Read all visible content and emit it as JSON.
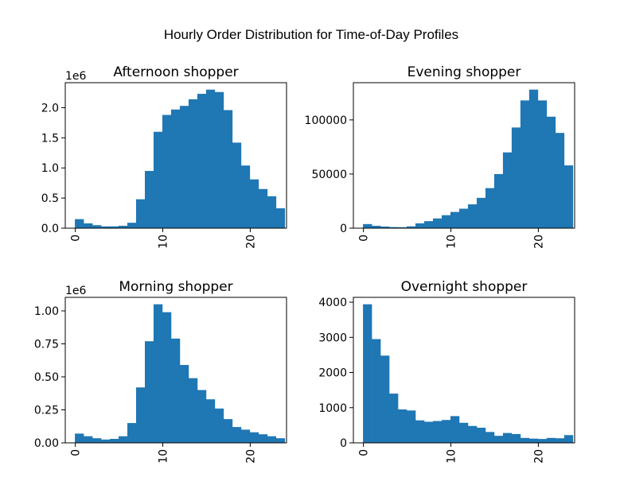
{
  "figure_title": "Hourly Order Distribution for Time-of-Day Profiles",
  "colors": {
    "bar": "#1f77b4"
  },
  "chart_data": [
    {
      "type": "bar",
      "title": "Afternoon shopper",
      "offset_label": "1e6",
      "x": [
        0,
        1,
        2,
        3,
        4,
        5,
        6,
        7,
        8,
        9,
        10,
        11,
        12,
        13,
        14,
        15,
        16,
        17,
        18,
        19,
        20,
        21,
        22,
        23
      ],
      "values": [
        150000,
        80000,
        50000,
        30000,
        30000,
        40000,
        90000,
        480000,
        950000,
        1600000,
        1880000,
        1970000,
        2030000,
        2140000,
        2230000,
        2300000,
        2260000,
        1960000,
        1420000,
        1040000,
        810000,
        650000,
        530000,
        330000
      ],
      "xlim": [
        -1.15,
        24.15
      ],
      "ylim": [
        0,
        2415000
      ],
      "xticks": [
        0,
        10,
        20
      ],
      "xtick_labels": [
        "0",
        "10",
        "20"
      ],
      "yticks": [
        0,
        500000,
        1000000,
        1500000,
        2000000
      ],
      "ytick_labels": [
        "0.0",
        "0.5",
        "1.0",
        "1.5",
        "2.0"
      ]
    },
    {
      "type": "bar",
      "title": "Evening shopper",
      "offset_label": "",
      "x": [
        0,
        1,
        2,
        3,
        4,
        5,
        6,
        7,
        8,
        9,
        10,
        11,
        12,
        13,
        14,
        15,
        16,
        17,
        18,
        19,
        20,
        21,
        22,
        23
      ],
      "values": [
        3800,
        2200,
        1500,
        1000,
        900,
        1700,
        4500,
        6500,
        9000,
        12000,
        15000,
        18000,
        22000,
        28000,
        37000,
        50000,
        70000,
        93000,
        118000,
        128000,
        118000,
        103000,
        88000,
        58000
      ],
      "xlim": [
        -1.15,
        24.15
      ],
      "ylim": [
        0,
        134400
      ],
      "xticks": [
        0,
        10,
        20
      ],
      "xtick_labels": [
        "0",
        "10",
        "20"
      ],
      "yticks": [
        0,
        50000,
        100000
      ],
      "ytick_labels": [
        "0",
        "50000",
        "100000"
      ]
    },
    {
      "type": "bar",
      "title": "Morning shopper",
      "offset_label": "1e6",
      "x": [
        0,
        1,
        2,
        3,
        4,
        5,
        6,
        7,
        8,
        9,
        10,
        11,
        12,
        13,
        14,
        15,
        16,
        17,
        18,
        19,
        20,
        21,
        22,
        23
      ],
      "values": [
        70000,
        50000,
        35000,
        25000,
        30000,
        50000,
        150000,
        420000,
        770000,
        1050000,
        990000,
        790000,
        590000,
        490000,
        400000,
        330000,
        260000,
        180000,
        120000,
        100000,
        80000,
        65000,
        50000,
        35000
      ],
      "xlim": [
        -1.15,
        24.15
      ],
      "ylim": [
        0,
        1102500
      ],
      "xticks": [
        0,
        10,
        20
      ],
      "xtick_labels": [
        "0",
        "10",
        "20"
      ],
      "yticks": [
        0,
        250000,
        500000,
        750000,
        1000000
      ],
      "ytick_labels": [
        "0.00",
        "0.25",
        "0.50",
        "0.75",
        "1.00"
      ]
    },
    {
      "type": "bar",
      "title": "Overnight shopper",
      "offset_label": "",
      "x": [
        0,
        1,
        2,
        3,
        4,
        5,
        6,
        7,
        8,
        9,
        10,
        11,
        12,
        13,
        14,
        15,
        16,
        17,
        18,
        19,
        20,
        21,
        22,
        23
      ],
      "values": [
        3940,
        2950,
        2480,
        1400,
        950,
        920,
        640,
        600,
        620,
        650,
        760,
        570,
        480,
        430,
        310,
        200,
        280,
        250,
        140,
        120,
        110,
        140,
        130,
        220
      ],
      "xlim": [
        -1.15,
        24.15
      ],
      "ylim": [
        0,
        4137
      ],
      "xticks": [
        0,
        10,
        20
      ],
      "xtick_labels": [
        "0",
        "10",
        "20"
      ],
      "yticks": [
        0,
        1000,
        2000,
        3000,
        4000
      ],
      "ytick_labels": [
        "0",
        "1000",
        "2000",
        "3000",
        "4000"
      ]
    }
  ]
}
